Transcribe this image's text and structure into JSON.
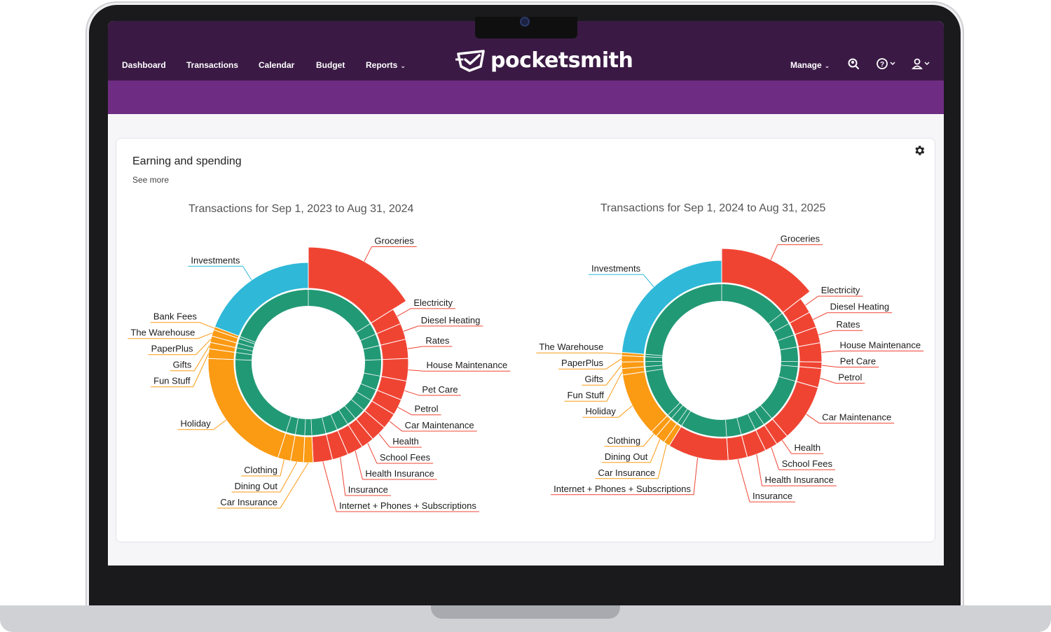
{
  "nav": {
    "items": [
      {
        "label": "Dashboard"
      },
      {
        "label": "Transactions"
      },
      {
        "label": "Calendar"
      },
      {
        "label": "Budget"
      },
      {
        "label": "Reports",
        "dropdown": true
      }
    ],
    "brand": "pocketsmith",
    "manage_label": "Manage",
    "icons": [
      "search-user-icon",
      "help-icon",
      "user-icon"
    ]
  },
  "widget": {
    "title": "Earning and spending",
    "see_more": "See more",
    "settings_icon": "gear-icon"
  },
  "colors": {
    "nav_bg": "#3a1a44",
    "band": "#6e2c82",
    "income": "#229975",
    "groceries_red": "#f04433",
    "investments": "#2fb8d8",
    "orange": "#fb9a13"
  },
  "chart_data": [
    {
      "type": "pie",
      "title": "Transactions for Sep 1, 2023 to Aug 31, 2024",
      "inner_ring": {
        "color": "#229975"
      },
      "slices": [
        {
          "label": "Groceries",
          "value": 15.5,
          "group": "red"
        },
        {
          "label": "Electricity",
          "value": 2.5,
          "group": "red"
        },
        {
          "label": "Diesel Heating",
          "value": 2.5,
          "group": "red"
        },
        {
          "label": "Rates",
          "value": 3.0,
          "group": "red"
        },
        {
          "label": "House Maintenance",
          "value": 3.5,
          "group": "red"
        },
        {
          "label": "Pet Care",
          "value": 3.0,
          "group": "red"
        },
        {
          "label": "Petrol",
          "value": 2.5,
          "group": "red"
        },
        {
          "label": "Car Maintenance",
          "value": 2.5,
          "group": "red"
        },
        {
          "label": "Health",
          "value": 2.5,
          "group": "red"
        },
        {
          "label": "School Fees",
          "value": 2.0,
          "group": "red"
        },
        {
          "label": "Health Insurance",
          "value": 2.5,
          "group": "red"
        },
        {
          "label": "Insurance",
          "value": 2.5,
          "group": "red"
        },
        {
          "label": "Internet + Phones + Subscriptions",
          "value": 3.0,
          "group": "red"
        },
        {
          "label": "Car Insurance",
          "value": 1.5,
          "group": "orange"
        },
        {
          "label": "Dining Out",
          "value": 2.0,
          "group": "orange"
        },
        {
          "label": "Clothing",
          "value": 2.0,
          "group": "orange"
        },
        {
          "label": "Holiday",
          "value": 20.0,
          "group": "orange"
        },
        {
          "label": "Fun Stuff",
          "value": 1.5,
          "group": "orange"
        },
        {
          "label": "Gifts",
          "value": 1.0,
          "group": "orange"
        },
        {
          "label": "PaperPlus",
          "value": 1.0,
          "group": "orange"
        },
        {
          "label": "The Warehouse",
          "value": 1.0,
          "group": "orange"
        },
        {
          "label": "Bank Fees",
          "value": 0.5,
          "group": "orange"
        },
        {
          "label": "Investments",
          "value": 18.5,
          "group": "blue"
        }
      ]
    },
    {
      "type": "pie",
      "title": "Transactions for Sep 1, 2024 to Aug 31, 2025",
      "inner_ring": {
        "color": "#229975"
      },
      "slices": [
        {
          "label": "Groceries",
          "value": 14.0,
          "group": "red"
        },
        {
          "label": "Electricity",
          "value": 2.5,
          "group": "red"
        },
        {
          "label": "Diesel Heating",
          "value": 2.5,
          "group": "red"
        },
        {
          "label": "Rates",
          "value": 2.5,
          "group": "red"
        },
        {
          "label": "House Maintenance",
          "value": 3.0,
          "group": "red"
        },
        {
          "label": "Pet Care",
          "value": 1.0,
          "group": "red"
        },
        {
          "label": "Petrol",
          "value": 3.0,
          "group": "red"
        },
        {
          "label": "Car Maintenance",
          "value": 9.0,
          "group": "red"
        },
        {
          "label": "Health",
          "value": 2.0,
          "group": "red"
        },
        {
          "label": "School Fees",
          "value": 2.0,
          "group": "red"
        },
        {
          "label": "Health Insurance",
          "value": 3.0,
          "group": "red"
        },
        {
          "label": "Insurance",
          "value": 3.0,
          "group": "red"
        },
        {
          "label": "Internet + Phones + Subscriptions",
          "value": 9.5,
          "group": "red"
        },
        {
          "label": "Car Insurance",
          "value": 1.0,
          "group": "orange"
        },
        {
          "label": "Dining Out",
          "value": 1.5,
          "group": "orange"
        },
        {
          "label": "Clothing",
          "value": 1.0,
          "group": "orange"
        },
        {
          "label": "Holiday",
          "value": 10.0,
          "group": "orange"
        },
        {
          "label": "Fun Stuff",
          "value": 1.0,
          "group": "orange"
        },
        {
          "label": "Gifts",
          "value": 1.0,
          "group": "orange"
        },
        {
          "label": "PaperPlus",
          "value": 1.0,
          "group": "orange"
        },
        {
          "label": "The Warehouse",
          "value": 0.5,
          "group": "orange"
        },
        {
          "label": "Investments",
          "value": 23.0,
          "group": "blue"
        }
      ]
    }
  ]
}
